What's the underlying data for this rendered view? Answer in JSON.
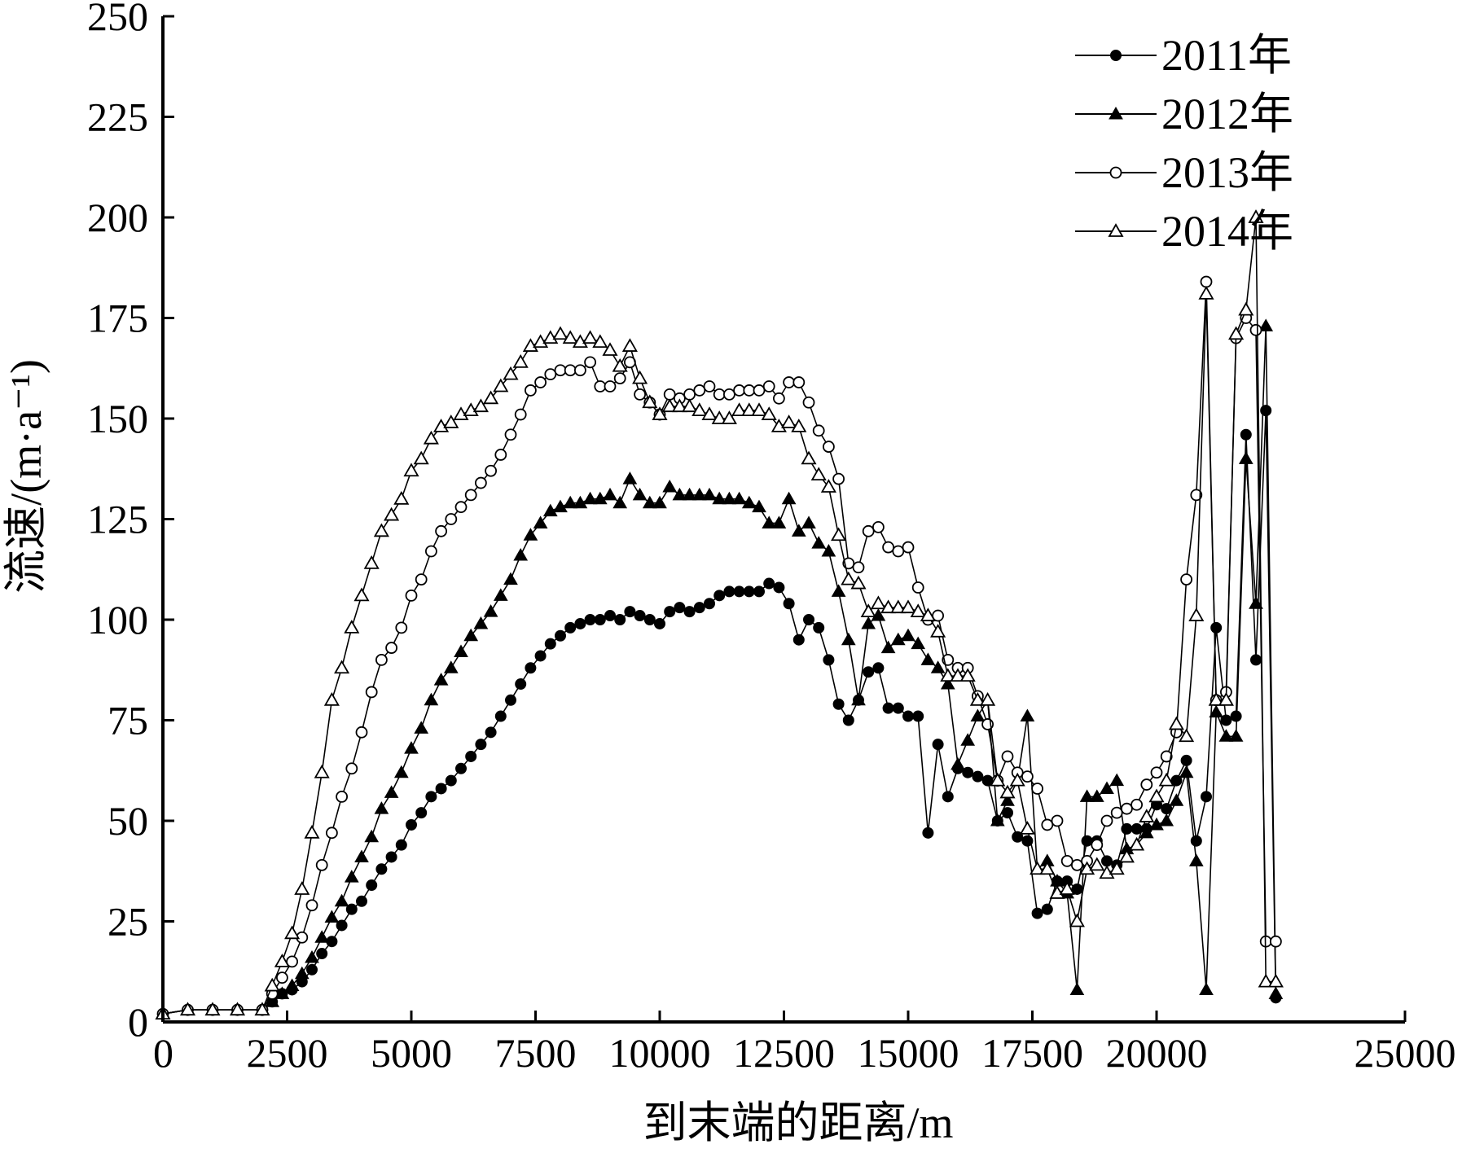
{
  "chart_data": {
    "type": "line",
    "xlabel": "到末端的距离/m",
    "ylabel": "流速/(m·a⁻¹)",
    "xlim": [
      0,
      25000
    ],
    "ylim": [
      0,
      250
    ],
    "xticks": [
      "0",
      "2500",
      "5000",
      "7500",
      "10000",
      "12500",
      "15000",
      "17500",
      "20000",
      "25000"
    ],
    "xtick_values": [
      0,
      2500,
      5000,
      7500,
      10000,
      12500,
      15000,
      17500,
      20000,
      25000
    ],
    "yticks": [
      "0",
      "25",
      "50",
      "75",
      "100",
      "125",
      "150",
      "175",
      "200",
      "225",
      "250"
    ],
    "yticks_values": [
      0,
      25,
      50,
      75,
      100,
      125,
      150,
      175,
      200,
      225,
      250
    ],
    "grid": false,
    "legend": "top-right",
    "series": [
      {
        "name": "2011年",
        "marker": "filled-circle",
        "x": [
          0,
          500,
          1000,
          1500,
          2000,
          2200,
          2400,
          2600,
          2800,
          3000,
          3200,
          3400,
          3600,
          3800,
          4000,
          4200,
          4400,
          4600,
          4800,
          5000,
          5200,
          5400,
          5600,
          5800,
          6000,
          6200,
          6400,
          6600,
          6800,
          7000,
          7200,
          7400,
          7600,
          7800,
          8000,
          8200,
          8400,
          8600,
          8800,
          9000,
          9200,
          9400,
          9600,
          9800,
          10000,
          10200,
          10400,
          10600,
          10800,
          11000,
          11200,
          11400,
          11600,
          11800,
          12000,
          12200,
          12400,
          12600,
          12800,
          13000,
          13200,
          13400,
          13600,
          13800,
          14000,
          14200,
          14400,
          14600,
          14800,
          15000,
          15200,
          15400,
          15600,
          15800,
          16000,
          16200,
          16400,
          16600,
          16800,
          17000,
          17200,
          17400,
          17600,
          17800,
          18000,
          18200,
          18400,
          18600,
          18800,
          19000,
          19200,
          19400,
          19600,
          19800,
          20000,
          20200,
          20400,
          20600,
          20800,
          21000,
          21200,
          21400,
          21600,
          21800,
          22000,
          22200,
          22400
        ],
        "y": [
          2,
          3,
          3,
          3,
          3,
          5,
          7,
          8,
          10,
          13,
          17,
          20,
          24,
          28,
          30,
          34,
          38,
          41,
          44,
          49,
          52,
          56,
          58,
          60,
          63,
          66,
          69,
          72,
          76,
          80,
          84,
          88,
          91,
          94,
          96,
          98,
          99,
          100,
          100,
          101,
          100,
          102,
          101,
          100,
          99,
          102,
          103,
          102,
          103,
          104,
          106,
          107,
          107,
          107,
          107,
          109,
          108,
          104,
          95,
          100,
          98,
          90,
          79,
          75,
          80,
          87,
          88,
          78,
          78,
          76,
          76,
          47,
          69,
          56,
          63,
          62,
          61,
          60,
          50,
          52,
          46,
          45,
          27,
          28,
          35,
          35,
          33,
          45,
          45,
          40,
          39,
          48,
          48,
          48,
          54,
          53,
          60,
          65,
          45,
          56,
          98,
          75,
          76,
          146,
          90,
          152,
          6
        ]
      },
      {
        "name": "2012年",
        "marker": "filled-triangle",
        "x": [
          0,
          500,
          1000,
          1500,
          2000,
          2200,
          2400,
          2600,
          2800,
          3000,
          3200,
          3400,
          3600,
          3800,
          4000,
          4200,
          4400,
          4600,
          4800,
          5000,
          5200,
          5400,
          5600,
          5800,
          6000,
          6200,
          6400,
          6600,
          6800,
          7000,
          7200,
          7400,
          7600,
          7800,
          8000,
          8200,
          8400,
          8600,
          8800,
          9000,
          9200,
          9400,
          9600,
          9800,
          10000,
          10200,
          10400,
          10600,
          10800,
          11000,
          11200,
          11400,
          11600,
          11800,
          12000,
          12200,
          12400,
          12600,
          12800,
          13000,
          13200,
          13400,
          13600,
          13800,
          14000,
          14200,
          14400,
          14600,
          14800,
          15000,
          15200,
          15400,
          15600,
          15800,
          16000,
          16200,
          16400,
          16600,
          16800,
          17000,
          17200,
          17400,
          17600,
          17800,
          18000,
          18200,
          18400,
          18600,
          18800,
          19000,
          19200,
          19400,
          19600,
          19800,
          20000,
          20200,
          20400,
          20600,
          20800,
          21000,
          21200,
          21400,
          21600,
          21800,
          22000,
          22200,
          22400
        ],
        "y": [
          2,
          3,
          3,
          3,
          3,
          5,
          7,
          9,
          12,
          16,
          21,
          26,
          30,
          36,
          41,
          46,
          53,
          57,
          62,
          68,
          73,
          80,
          85,
          88,
          92,
          96,
          99,
          102,
          106,
          110,
          116,
          121,
          124,
          127,
          128,
          129,
          129,
          130,
          130,
          131,
          129,
          135,
          131,
          129,
          129,
          133,
          131,
          131,
          131,
          131,
          130,
          130,
          130,
          129,
          128,
          124,
          124,
          130,
          122,
          124,
          119,
          117,
          107,
          95,
          80,
          99,
          101,
          93,
          95,
          96,
          94,
          90,
          88,
          84,
          64,
          70,
          76,
          80,
          50,
          55,
          60,
          76,
          38,
          40,
          35,
          32,
          8,
          56,
          56,
          58,
          60,
          43,
          44,
          47,
          49,
          50,
          55,
          62,
          40,
          8,
          77,
          71,
          71,
          140,
          104,
          173,
          7
        ]
      },
      {
        "name": "2013年",
        "marker": "open-circle",
        "x": [
          0,
          500,
          1000,
          1500,
          2000,
          2200,
          2400,
          2600,
          2800,
          3000,
          3200,
          3400,
          3600,
          3800,
          4000,
          4200,
          4400,
          4600,
          4800,
          5000,
          5200,
          5400,
          5600,
          5800,
          6000,
          6200,
          6400,
          6600,
          6800,
          7000,
          7200,
          7400,
          7600,
          7800,
          8000,
          8200,
          8400,
          8600,
          8800,
          9000,
          9200,
          9400,
          9600,
          9800,
          10000,
          10200,
          10400,
          10600,
          10800,
          11000,
          11200,
          11400,
          11600,
          11800,
          12000,
          12200,
          12400,
          12600,
          12800,
          13000,
          13200,
          13400,
          13600,
          13800,
          14000,
          14200,
          14400,
          14600,
          14800,
          15000,
          15200,
          15400,
          15600,
          15800,
          16000,
          16200,
          16400,
          16600,
          16800,
          17000,
          17200,
          17400,
          17600,
          17800,
          18000,
          18200,
          18400,
          18600,
          18800,
          19000,
          19200,
          19400,
          19600,
          19800,
          20000,
          20200,
          20400,
          20600,
          20800,
          21000,
          21200,
          21400,
          21600,
          21800,
          22000,
          22200,
          22400
        ],
        "y": [
          2,
          3,
          3,
          3,
          3,
          7,
          11,
          15,
          21,
          29,
          39,
          47,
          56,
          63,
          72,
          82,
          90,
          93,
          98,
          106,
          110,
          117,
          122,
          125,
          128,
          131,
          134,
          137,
          141,
          146,
          151,
          157,
          159,
          161,
          162,
          162,
          162,
          164,
          158,
          158,
          160,
          164,
          156,
          154,
          151,
          156,
          155,
          156,
          157,
          158,
          156,
          156,
          157,
          157,
          157,
          158,
          155,
          159,
          159,
          154,
          147,
          143,
          135,
          114,
          113,
          122,
          123,
          118,
          117,
          118,
          108,
          100,
          101,
          90,
          88,
          88,
          81,
          74,
          60,
          66,
          62,
          61,
          58,
          49,
          50,
          40,
          39,
          40,
          44,
          50,
          52,
          53,
          54,
          59,
          62,
          66,
          72,
          110,
          131,
          184,
          80,
          82,
          170,
          175,
          172,
          20,
          20
        ]
      },
      {
        "name": "2014年",
        "marker": "open-triangle",
        "x": [
          0,
          500,
          1000,
          1500,
          2000,
          2200,
          2400,
          2600,
          2800,
          3000,
          3200,
          3400,
          3600,
          3800,
          4000,
          4200,
          4400,
          4600,
          4800,
          5000,
          5200,
          5400,
          5600,
          5800,
          6000,
          6200,
          6400,
          6600,
          6800,
          7000,
          7200,
          7400,
          7600,
          7800,
          8000,
          8200,
          8400,
          8600,
          8800,
          9000,
          9200,
          9400,
          9600,
          9800,
          10000,
          10200,
          10400,
          10600,
          10800,
          11000,
          11200,
          11400,
          11600,
          11800,
          12000,
          12200,
          12400,
          12600,
          12800,
          13000,
          13200,
          13400,
          13600,
          13800,
          14000,
          14200,
          14400,
          14600,
          14800,
          15000,
          15200,
          15400,
          15600,
          15800,
          16000,
          16200,
          16400,
          16600,
          16800,
          17000,
          17200,
          17400,
          17600,
          17800,
          18000,
          18200,
          18400,
          18600,
          18800,
          19000,
          19200,
          19400,
          19600,
          19800,
          20000,
          20200,
          20400,
          20600,
          20800,
          21000,
          21200,
          21400,
          21600,
          21800,
          22000,
          22200,
          22400
        ],
        "y": [
          2,
          3,
          3,
          3,
          3,
          9,
          15,
          22,
          33,
          47,
          62,
          80,
          88,
          98,
          106,
          114,
          122,
          126,
          130,
          137,
          140,
          145,
          148,
          149,
          151,
          152,
          153,
          155,
          158,
          161,
          164,
          168,
          169,
          170,
          171,
          170,
          169,
          170,
          169,
          167,
          163,
          168,
          160,
          154,
          151,
          153,
          153,
          153,
          152,
          151,
          150,
          150,
          152,
          152,
          152,
          151,
          148,
          149,
          148,
          140,
          136,
          133,
          121,
          110,
          109,
          102,
          104,
          103,
          103,
          103,
          102,
          101,
          97,
          86,
          86,
          86,
          80,
          80,
          60,
          57,
          60,
          48,
          38,
          38,
          32,
          33,
          25,
          38,
          39,
          37,
          38,
          41,
          44,
          51,
          56,
          60,
          74,
          71,
          101,
          181,
          80,
          80,
          171,
          177,
          200,
          10,
          10
        ]
      }
    ]
  }
}
